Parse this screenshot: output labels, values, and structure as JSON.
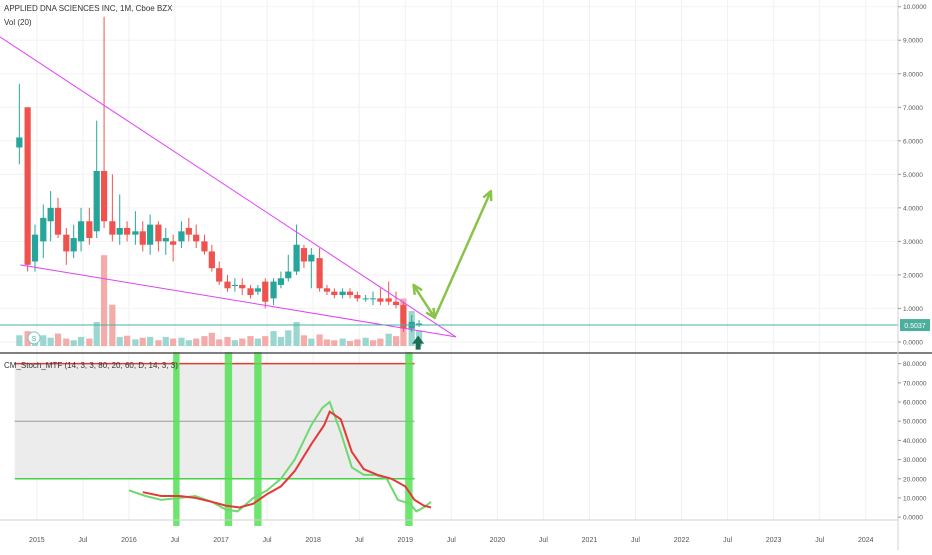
{
  "header": {
    "symbol_line": "APPLIED DNA SCIENCES INC, 1M, Cboe BZX",
    "volume_label": "Vol (20)",
    "indicator_label": "CM_Stoch_MTF (14, 3, 3, 80, 20, 60, D, 14, 3, 3)",
    "s_badge": "S"
  },
  "chart_data": [
    {
      "type": "candlestick",
      "pane": "price",
      "title": "APPLIED DNA SCIENCES INC, 1M, Cboe BZX",
      "x_axis": {
        "tick_labels": [
          "2015",
          "Jul",
          "2016",
          "Jul",
          "2017",
          "Jul",
          "2018",
          "Jul",
          "2019",
          "Jul",
          "2020",
          "Jul",
          "2021",
          "Jul",
          "2022",
          "Jul",
          "2023",
          "Jul",
          "2024"
        ],
        "tick_values": [
          2015.0,
          2015.5,
          2016.0,
          2016.5,
          2017.0,
          2017.5,
          2018.0,
          2018.5,
          2019.0,
          2019.5,
          2020.0,
          2020.5,
          2021.0,
          2021.5,
          2022.0,
          2022.5,
          2023.0,
          2023.5,
          2024.0
        ],
        "range": [
          2014.6,
          2024.35
        ]
      },
      "y_axis": {
        "tick_labels": [
          "0.0000",
          "1.0000",
          "2.0000",
          "3.0000",
          "4.0000",
          "5.0000",
          "6.0000",
          "7.0000",
          "8.0000",
          "9.0000",
          "10.0000"
        ],
        "tick_values": [
          0,
          1,
          2,
          3,
          4,
          5,
          6,
          7,
          8,
          9,
          10
        ],
        "range": [
          -0.3,
          10.2
        ]
      },
      "last_price": {
        "value": 0.5037,
        "label": "0.5037",
        "color": "#4caf9e"
      },
      "up_color": "#26a69a",
      "down_color": "#ef5350",
      "candles": [
        {
          "t": 2014.81,
          "o": 5.8,
          "h": 7.7,
          "l": 5.3,
          "c": 6.1
        },
        {
          "t": 2014.9,
          "o": 7.0,
          "h": 7.0,
          "l": 2.1,
          "c": 2.3
        },
        {
          "t": 2014.98,
          "o": 2.4,
          "h": 3.5,
          "l": 2.1,
          "c": 3.2
        },
        {
          "t": 2015.07,
          "o": 3.0,
          "h": 4.1,
          "l": 2.5,
          "c": 3.7
        },
        {
          "t": 2015.15,
          "o": 3.6,
          "h": 4.5,
          "l": 3.0,
          "c": 4.0
        },
        {
          "t": 2015.23,
          "o": 4.0,
          "h": 4.3,
          "l": 3.1,
          "c": 3.2
        },
        {
          "t": 2015.32,
          "o": 3.2,
          "h": 3.4,
          "l": 2.3,
          "c": 2.7
        },
        {
          "t": 2015.4,
          "o": 2.7,
          "h": 3.5,
          "l": 2.5,
          "c": 3.1
        },
        {
          "t": 2015.48,
          "o": 3.0,
          "h": 4.0,
          "l": 2.7,
          "c": 3.6
        },
        {
          "t": 2015.57,
          "o": 3.6,
          "h": 4.0,
          "l": 2.9,
          "c": 3.1
        },
        {
          "t": 2015.65,
          "o": 3.3,
          "h": 6.6,
          "l": 3.1,
          "c": 5.1
        },
        {
          "t": 2015.73,
          "o": 5.1,
          "h": 9.7,
          "l": 3.4,
          "c": 3.6
        },
        {
          "t": 2015.82,
          "o": 3.6,
          "h": 5.0,
          "l": 3.0,
          "c": 3.2
        },
        {
          "t": 2015.9,
          "o": 3.2,
          "h": 4.4,
          "l": 2.9,
          "c": 3.4
        },
        {
          "t": 2015.98,
          "o": 3.4,
          "h": 3.6,
          "l": 3.0,
          "c": 3.2
        },
        {
          "t": 2016.07,
          "o": 3.2,
          "h": 3.9,
          "l": 2.9,
          "c": 3.3
        },
        {
          "t": 2016.15,
          "o": 3.3,
          "h": 3.6,
          "l": 2.7,
          "c": 2.9
        },
        {
          "t": 2016.23,
          "o": 2.9,
          "h": 3.8,
          "l": 2.6,
          "c": 3.5
        },
        {
          "t": 2016.32,
          "o": 3.5,
          "h": 3.6,
          "l": 2.7,
          "c": 3.0
        },
        {
          "t": 2016.4,
          "o": 3.0,
          "h": 3.4,
          "l": 2.6,
          "c": 3.1
        },
        {
          "t": 2016.48,
          "o": 3.0,
          "h": 3.2,
          "l": 2.4,
          "c": 2.9
        },
        {
          "t": 2016.57,
          "o": 3.0,
          "h": 3.6,
          "l": 2.8,
          "c": 3.3
        },
        {
          "t": 2016.65,
          "o": 3.4,
          "h": 3.7,
          "l": 3.0,
          "c": 3.2
        },
        {
          "t": 2016.73,
          "o": 3.2,
          "h": 3.5,
          "l": 2.8,
          "c": 3.0
        },
        {
          "t": 2016.82,
          "o": 3.0,
          "h": 3.2,
          "l": 2.6,
          "c": 2.7
        },
        {
          "t": 2016.9,
          "o": 2.7,
          "h": 2.9,
          "l": 2.1,
          "c": 2.2
        },
        {
          "t": 2016.98,
          "o": 2.2,
          "h": 2.4,
          "l": 1.7,
          "c": 1.8
        },
        {
          "t": 2017.07,
          "o": 1.8,
          "h": 2.0,
          "l": 1.5,
          "c": 1.6
        },
        {
          "t": 2017.15,
          "o": 1.7,
          "h": 1.9,
          "l": 1.5,
          "c": 1.7
        },
        {
          "t": 2017.23,
          "o": 1.7,
          "h": 1.9,
          "l": 1.4,
          "c": 1.6
        },
        {
          "t": 2017.32,
          "o": 1.6,
          "h": 1.7,
          "l": 1.3,
          "c": 1.4
        },
        {
          "t": 2017.4,
          "o": 1.5,
          "h": 1.7,
          "l": 1.4,
          "c": 1.6
        },
        {
          "t": 2017.48,
          "o": 1.8,
          "h": 1.9,
          "l": 1.0,
          "c": 1.2
        },
        {
          "t": 2017.57,
          "o": 1.3,
          "h": 1.9,
          "l": 1.1,
          "c": 1.8
        },
        {
          "t": 2017.65,
          "o": 1.7,
          "h": 2.1,
          "l": 1.6,
          "c": 1.9
        },
        {
          "t": 2017.73,
          "o": 1.9,
          "h": 2.6,
          "l": 1.8,
          "c": 2.1
        },
        {
          "t": 2017.82,
          "o": 2.1,
          "h": 3.5,
          "l": 2.0,
          "c": 2.9
        },
        {
          "t": 2017.9,
          "o": 2.8,
          "h": 2.9,
          "l": 2.2,
          "c": 2.4
        },
        {
          "t": 2017.98,
          "o": 2.4,
          "h": 2.8,
          "l": 1.6,
          "c": 2.6
        },
        {
          "t": 2018.07,
          "o": 2.5,
          "h": 2.8,
          "l": 1.5,
          "c": 1.6
        },
        {
          "t": 2018.15,
          "o": 1.6,
          "h": 1.7,
          "l": 1.4,
          "c": 1.5
        },
        {
          "t": 2018.23,
          "o": 1.5,
          "h": 1.6,
          "l": 1.3,
          "c": 1.4
        },
        {
          "t": 2018.32,
          "o": 1.4,
          "h": 1.6,
          "l": 1.3,
          "c": 1.5
        },
        {
          "t": 2018.4,
          "o": 1.5,
          "h": 1.6,
          "l": 1.3,
          "c": 1.4
        },
        {
          "t": 2018.48,
          "o": 1.4,
          "h": 1.5,
          "l": 1.2,
          "c": 1.3
        },
        {
          "t": 2018.57,
          "o": 1.3,
          "h": 1.4,
          "l": 1.2,
          "c": 1.3
        },
        {
          "t": 2018.65,
          "o": 1.3,
          "h": 1.5,
          "l": 1.1,
          "c": 1.3
        },
        {
          "t": 2018.73,
          "o": 1.3,
          "h": 1.6,
          "l": 1.1,
          "c": 1.2
        },
        {
          "t": 2018.82,
          "o": 1.3,
          "h": 1.8,
          "l": 1.1,
          "c": 1.2
        },
        {
          "t": 2018.9,
          "o": 1.2,
          "h": 1.5,
          "l": 1.0,
          "c": 1.1
        },
        {
          "t": 2018.98,
          "o": 1.1,
          "h": 1.2,
          "l": 0.3,
          "c": 0.4
        },
        {
          "t": 2019.07,
          "o": 0.4,
          "h": 0.8,
          "l": 0.3,
          "c": 0.6
        },
        {
          "t": 2019.15,
          "o": 0.5,
          "h": 0.65,
          "l": 0.45,
          "c": 0.55
        }
      ],
      "volume": [
        {
          "t": 2014.81,
          "v": 0.26,
          "up": true
        },
        {
          "t": 2014.9,
          "v": 0.36,
          "up": false
        },
        {
          "t": 2014.98,
          "v": 0.18,
          "up": true
        },
        {
          "t": 2015.07,
          "v": 0.26,
          "up": true
        },
        {
          "t": 2015.15,
          "v": 0.2,
          "up": true
        },
        {
          "t": 2015.23,
          "v": 0.3,
          "up": false
        },
        {
          "t": 2015.32,
          "v": 0.18,
          "up": false
        },
        {
          "t": 2015.4,
          "v": 0.14,
          "up": true
        },
        {
          "t": 2015.48,
          "v": 0.22,
          "up": true
        },
        {
          "t": 2015.57,
          "v": 0.18,
          "up": false
        },
        {
          "t": 2015.65,
          "v": 0.58,
          "up": true
        },
        {
          "t": 2015.73,
          "v": 2.2,
          "up": false
        },
        {
          "t": 2015.82,
          "v": 1.0,
          "up": false
        },
        {
          "t": 2015.9,
          "v": 0.22,
          "up": true
        },
        {
          "t": 2015.98,
          "v": 0.25,
          "up": false
        },
        {
          "t": 2016.07,
          "v": 0.16,
          "up": true
        },
        {
          "t": 2016.15,
          "v": 0.2,
          "up": false
        },
        {
          "t": 2016.23,
          "v": 0.22,
          "up": true
        },
        {
          "t": 2016.32,
          "v": 0.14,
          "up": false
        },
        {
          "t": 2016.4,
          "v": 0.22,
          "up": true
        },
        {
          "t": 2016.48,
          "v": 0.18,
          "up": false
        },
        {
          "t": 2016.57,
          "v": 0.2,
          "up": true
        },
        {
          "t": 2016.65,
          "v": 0.14,
          "up": true
        },
        {
          "t": 2016.73,
          "v": 0.18,
          "up": false
        },
        {
          "t": 2016.82,
          "v": 0.24,
          "up": false
        },
        {
          "t": 2016.9,
          "v": 0.32,
          "up": false
        },
        {
          "t": 2016.98,
          "v": 0.16,
          "up": false
        },
        {
          "t": 2017.07,
          "v": 0.22,
          "up": false
        },
        {
          "t": 2017.15,
          "v": 0.14,
          "up": true
        },
        {
          "t": 2017.23,
          "v": 0.18,
          "up": false
        },
        {
          "t": 2017.32,
          "v": 0.24,
          "up": false
        },
        {
          "t": 2017.4,
          "v": 0.18,
          "up": true
        },
        {
          "t": 2017.48,
          "v": 0.24,
          "up": false
        },
        {
          "t": 2017.57,
          "v": 0.36,
          "up": true
        },
        {
          "t": 2017.65,
          "v": 0.22,
          "up": true
        },
        {
          "t": 2017.73,
          "v": 0.38,
          "up": true
        },
        {
          "t": 2017.82,
          "v": 0.58,
          "up": true
        },
        {
          "t": 2017.9,
          "v": 0.26,
          "up": false
        },
        {
          "t": 2017.98,
          "v": 0.18,
          "up": true
        },
        {
          "t": 2018.07,
          "v": 0.28,
          "up": false
        },
        {
          "t": 2018.15,
          "v": 0.16,
          "up": false
        },
        {
          "t": 2018.23,
          "v": 0.14,
          "up": false
        },
        {
          "t": 2018.32,
          "v": 0.18,
          "up": true
        },
        {
          "t": 2018.4,
          "v": 0.12,
          "up": false
        },
        {
          "t": 2018.48,
          "v": 0.16,
          "up": false
        },
        {
          "t": 2018.57,
          "v": 0.2,
          "up": true
        },
        {
          "t": 2018.65,
          "v": 0.14,
          "up": false
        },
        {
          "t": 2018.73,
          "v": 0.18,
          "up": false
        },
        {
          "t": 2018.82,
          "v": 0.3,
          "up": true
        },
        {
          "t": 2018.9,
          "v": 0.24,
          "up": false
        },
        {
          "t": 2018.98,
          "v": 1.15,
          "up": false
        },
        {
          "t": 2019.07,
          "v": 0.85,
          "up": true
        },
        {
          "t": 2019.15,
          "v": 0.38,
          "up": true
        }
      ],
      "trendlines": [
        {
          "color": "#e040fb",
          "x1": 2014.6,
          "y1": 9.1,
          "x2": 2019.55,
          "y2": 0.15
        },
        {
          "color": "#e040fb",
          "x1": 2014.82,
          "y1": 2.3,
          "x2": 2019.55,
          "y2": 0.15
        }
      ],
      "projection_arrows": [
        {
          "color": "#8bc34a",
          "points": [
            [
              2019.09,
              1.7
            ],
            [
              2019.32,
              0.72
            ],
            [
              2019.93,
              4.5
            ]
          ]
        }
      ],
      "signal_arrow": {
        "t": 2019.14,
        "color": "#1b6e54"
      }
    },
    {
      "type": "line",
      "pane": "stochastic",
      "title": "CM_Stoch_MTF (14, 3, 3, 80, 20, 60, D, 14, 3, 3)",
      "y_axis": {
        "tick_labels": [
          "0.0000",
          "10.0000",
          "20.0000",
          "30.0000",
          "40.0000",
          "50.0000",
          "60.0000",
          "70.0000",
          "80.0000"
        ],
        "tick_values": [
          0,
          10,
          20,
          30,
          40,
          50,
          60,
          70,
          80
        ],
        "range": [
          -1.5,
          84
        ]
      },
      "band": {
        "upper": 80,
        "lower": 20,
        "mid": 50,
        "upper_color": "#e53935",
        "lower_color": "#43d043",
        "mid_color": "#999999",
        "fill": "#ececec"
      },
      "series": [
        {
          "color": "#6fd86f",
          "points": [
            [
              2016.0,
              14
            ],
            [
              2016.18,
              11
            ],
            [
              2016.35,
              9
            ],
            [
              2016.55,
              10
            ],
            [
              2016.72,
              11
            ],
            [
              2016.9,
              8
            ],
            [
              2017.05,
              4
            ],
            [
              2017.18,
              3
            ],
            [
              2017.35,
              10
            ],
            [
              2017.5,
              14
            ],
            [
              2017.65,
              20
            ],
            [
              2017.8,
              30
            ],
            [
              2017.98,
              48
            ],
            [
              2018.1,
              57
            ],
            [
              2018.18,
              60
            ],
            [
              2018.3,
              44
            ],
            [
              2018.42,
              26
            ],
            [
              2018.55,
              22
            ],
            [
              2018.68,
              22
            ],
            [
              2018.8,
              20
            ],
            [
              2018.92,
              9
            ],
            [
              2019.05,
              7
            ],
            [
              2019.12,
              3
            ],
            [
              2019.2,
              5
            ],
            [
              2019.28,
              8
            ]
          ]
        },
        {
          "color": "#e53935",
          "points": [
            [
              2016.15,
              13
            ],
            [
              2016.35,
              11
            ],
            [
              2016.55,
              11
            ],
            [
              2016.72,
              10
            ],
            [
              2016.9,
              8
            ],
            [
              2017.05,
              6
            ],
            [
              2017.2,
              5
            ],
            [
              2017.35,
              7
            ],
            [
              2017.5,
              12
            ],
            [
              2017.65,
              16
            ],
            [
              2017.8,
              24
            ],
            [
              2017.98,
              38
            ],
            [
              2018.12,
              48
            ],
            [
              2018.18,
              55
            ],
            [
              2018.3,
              51
            ],
            [
              2018.42,
              34
            ],
            [
              2018.55,
              25
            ],
            [
              2018.7,
              22
            ],
            [
              2018.85,
              20
            ],
            [
              2019.0,
              16
            ],
            [
              2019.1,
              9
            ],
            [
              2019.2,
              6
            ],
            [
              2019.28,
              5
            ]
          ]
        }
      ],
      "highlights": [
        {
          "x0": 2016.48,
          "x1": 2016.55
        },
        {
          "x0": 2017.04,
          "x1": 2017.12
        },
        {
          "x0": 2017.36,
          "x1": 2017.44
        },
        {
          "x0": 2019.0,
          "x1": 2019.08
        }
      ],
      "highlight_color": "#55e055"
    }
  ]
}
